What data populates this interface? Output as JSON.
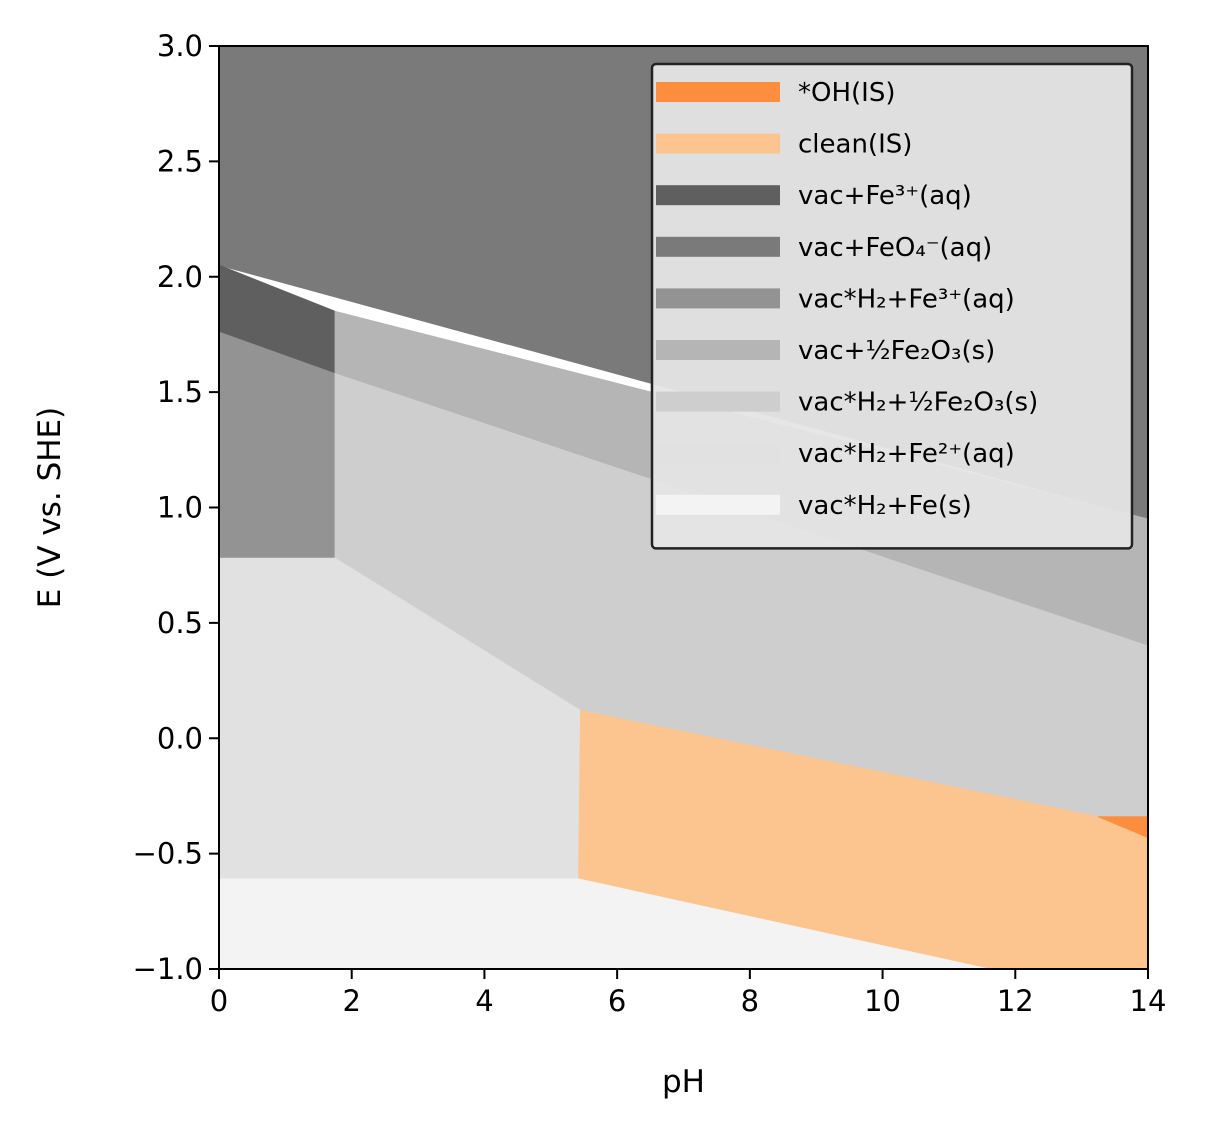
{
  "chart_data": {
    "type": "area",
    "title": "",
    "xlabel": "pH",
    "ylabel": "E (V vs. SHE)",
    "xlim": [
      0,
      14
    ],
    "ylim": [
      -1.0,
      3.0
    ],
    "xticks": [
      0,
      2,
      4,
      6,
      8,
      10,
      12,
      14
    ],
    "xtick_labels": [
      "0",
      "2",
      "4",
      "6",
      "8",
      "10",
      "12",
      "14"
    ],
    "yticks": [
      -1.0,
      -0.5,
      0.0,
      0.5,
      1.0,
      1.5,
      2.0,
      2.5,
      3.0
    ],
    "ytick_labels": [
      "−1.0",
      "−0.5",
      "0.0",
      "0.5",
      "1.0",
      "1.5",
      "2.0",
      "2.5",
      "3.0"
    ],
    "grid": false,
    "legend_position": "top-right",
    "regions": [
      {
        "name": "vac+FeO₄⁻(aq)",
        "color": "#7a7a7a",
        "polygon": [
          [
            0,
            3.0
          ],
          [
            14,
            3.0
          ],
          [
            14,
            0.95
          ],
          [
            0,
            2.05
          ]
        ]
      },
      {
        "name": "vac+Fe³⁺(aq)",
        "color": "#5f5f5f",
        "polygon": [
          [
            0,
            2.05
          ],
          [
            1.75,
            1.85
          ],
          [
            1.75,
            1.58
          ],
          [
            0,
            1.76
          ]
        ]
      },
      {
        "name": "vac+½Fe₂O₃(s)",
        "color": "#b5b5b5",
        "polygon": [
          [
            1.75,
            1.85
          ],
          [
            14,
            0.95
          ],
          [
            14,
            0.4
          ],
          [
            1.75,
            1.58
          ]
        ]
      },
      {
        "name": "vac*H₂+Fe³⁺(aq)",
        "color": "#939393",
        "polygon": [
          [
            0,
            1.76
          ],
          [
            1.75,
            1.58
          ],
          [
            1.75,
            0.78
          ],
          [
            0,
            0.78
          ]
        ]
      },
      {
        "name": "vac*H₂+½Fe₂O₃(s)",
        "color": "#cecece",
        "polygon": [
          [
            1.75,
            1.58
          ],
          [
            14,
            0.4
          ],
          [
            14,
            -0.43
          ],
          [
            5.45,
            0.12
          ],
          [
            1.75,
            0.78
          ]
        ]
      },
      {
        "name": "vac*H₂+Fe²⁺(aq)",
        "color": "#e1e1e1",
        "polygon": [
          [
            0,
            0.78
          ],
          [
            1.75,
            0.78
          ],
          [
            5.45,
            0.12
          ],
          [
            5.42,
            -0.61
          ],
          [
            0,
            -0.61
          ]
        ]
      },
      {
        "name": "clean(IS)",
        "color": "#fcc48e",
        "polygon": [
          [
            5.45,
            0.12
          ],
          [
            13.25,
            -0.34
          ],
          [
            14,
            -0.43
          ],
          [
            14,
            -1.0
          ],
          [
            11.6,
            -1.0
          ],
          [
            5.42,
            -0.61
          ]
        ]
      },
      {
        "name": "*OH(IS)",
        "color": "#fd8e40",
        "polygon": [
          [
            13.25,
            -0.34
          ],
          [
            14,
            -0.34
          ],
          [
            14,
            -0.43
          ]
        ]
      },
      {
        "name": "vac*H₂+Fe(s)",
        "color": "#f3f3f3",
        "polygon": [
          [
            0,
            -0.61
          ],
          [
            5.42,
            -0.61
          ],
          [
            11.6,
            -1.0
          ],
          [
            0,
            -1.0
          ]
        ]
      }
    ],
    "legend": [
      {
        "label": "*OH(IS)",
        "color": "#fd8e40"
      },
      {
        "label": "clean(IS)",
        "color": "#fcc48e"
      },
      {
        "label": "vac+Fe³⁺(aq)",
        "color": "#5f5f5f"
      },
      {
        "label": "vac+FeO₄⁻(aq)",
        "color": "#7a7a7a"
      },
      {
        "label": "vac*H₂+Fe³⁺(aq)",
        "color": "#939393"
      },
      {
        "label": "vac+½Fe₂O₃(s)",
        "color": "#b5b5b5"
      },
      {
        "label": "vac*H₂+½Fe₂O₃(s)",
        "color": "#cecece"
      },
      {
        "label": "vac*H₂+Fe²⁺(aq)",
        "color": "#e1e1e1"
      },
      {
        "label": "vac*H₂+Fe(s)",
        "color": "#f3f3f3"
      }
    ]
  }
}
